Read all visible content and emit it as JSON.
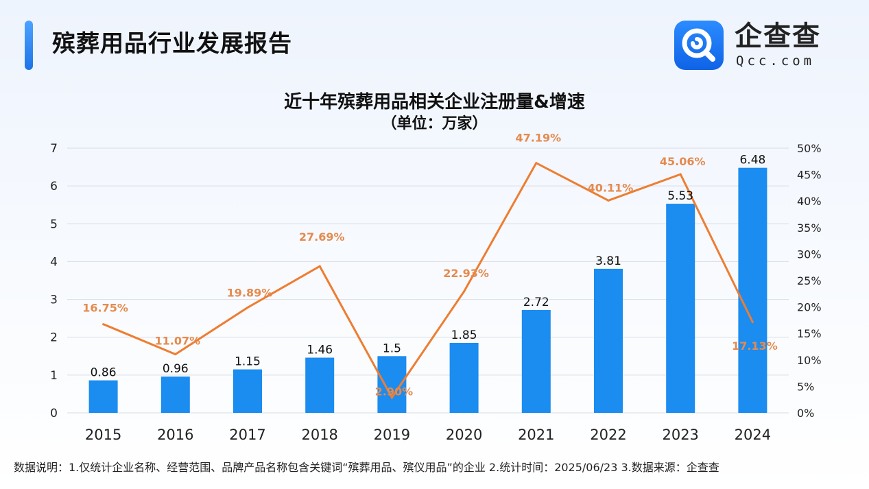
{
  "header": {
    "title": "殡葬用品行业发展报告",
    "logo_name": "企查查",
    "logo_domain": "Qcc.com"
  },
  "chart_data": {
    "type": "bar",
    "title": "近十年殡葬用品相关企业注册量&增速",
    "subtitle": "（单位：万家）",
    "categories": [
      "2015",
      "2016",
      "2017",
      "2018",
      "2019",
      "2020",
      "2021",
      "2022",
      "2023",
      "2024"
    ],
    "series": [
      {
        "type": "bar",
        "values": [
          0.86,
          0.96,
          1.15,
          1.46,
          1.5,
          1.85,
          2.72,
          3.81,
          5.53,
          6.48
        ],
        "labels": [
          "0.86",
          "0.96",
          "1.15",
          "1.46",
          "1.5",
          "1.85",
          "2.72",
          "3.81",
          "5.53",
          "6.48"
        ],
        "axis": "left",
        "color": "#1b8cf0"
      },
      {
        "type": "line",
        "values": [
          16.75,
          11.07,
          19.89,
          27.69,
          2.9,
          22.93,
          47.19,
          40.11,
          45.06,
          17.13
        ],
        "labels": [
          "16.75%",
          "11.07%",
          "19.89%",
          "27.69%",
          "2.90%",
          "22.93%",
          "47.19%",
          "40.11%",
          "45.06%",
          "17.13%"
        ],
        "axis": "right",
        "color": "#ee7d31"
      }
    ],
    "y_left": {
      "min": 0,
      "max": 7,
      "ticks": [
        "0",
        "1",
        "2",
        "3",
        "4",
        "5",
        "6",
        "7"
      ]
    },
    "y_right": {
      "min": 0,
      "max": 50,
      "ticks": [
        "0%",
        "5%",
        "10%",
        "15%",
        "20%",
        "25%",
        "30%",
        "35%",
        "40%",
        "45%",
        "50%"
      ]
    },
    "grid": true,
    "legend": "none"
  },
  "footnote": "数据说明：1.仅统计企业名称、经营范围、品牌产品名称包含关键词“殡葬用品、殡仪用品”的企业   2.统计时间：2025/06/23    3.数据来源：企查查"
}
